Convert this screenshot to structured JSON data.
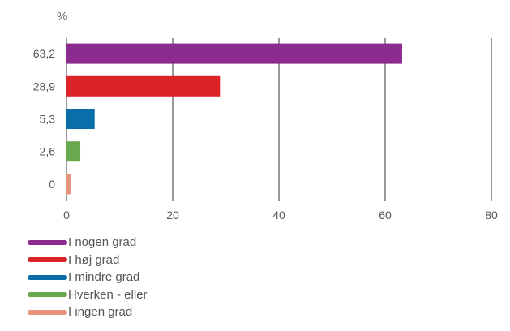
{
  "chart_data": {
    "type": "bar",
    "orientation": "horizontal",
    "unit_label": "%",
    "xlim": [
      0,
      80
    ],
    "x_ticks": [
      "0",
      "20",
      "40",
      "60",
      "80"
    ],
    "grid": true,
    "legend_position": "bottom-left",
    "categories": [
      "I nogen grad",
      "I høj grad",
      "I mindre grad",
      "Hverken - eller",
      "I ingen grad"
    ],
    "values": [
      63.2,
      28.9,
      5.3,
      2.6,
      0
    ],
    "value_labels": [
      "63,2",
      "28,9",
      "5,3",
      "2,6",
      "0"
    ],
    "colors": [
      "#8b2a8f",
      "#dc2328",
      "#0a6ea8",
      "#6aa84f",
      "#e8937b"
    ]
  }
}
